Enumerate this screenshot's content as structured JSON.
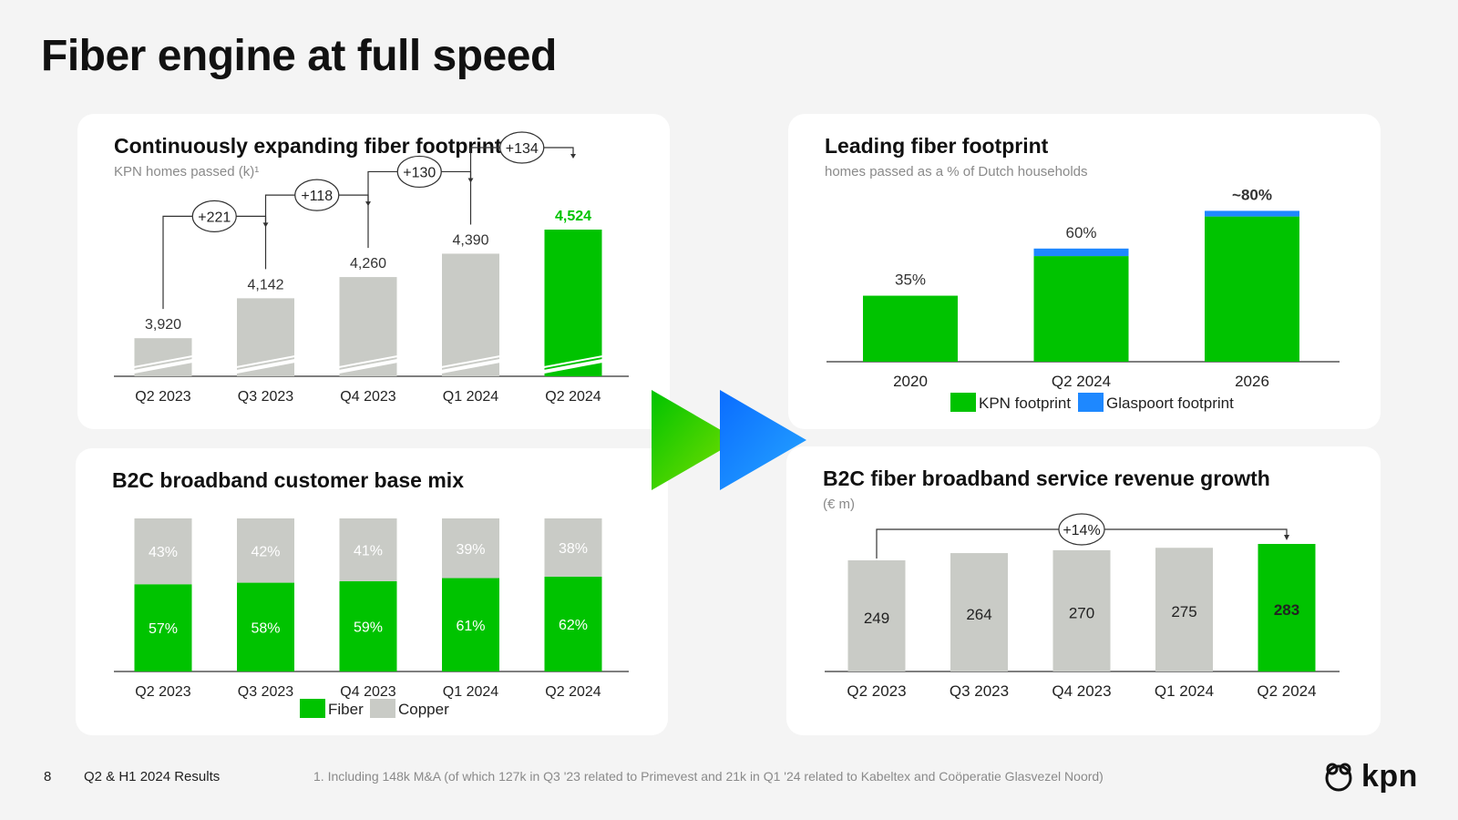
{
  "slide": {
    "title": "Fiber engine at full speed"
  },
  "footer": {
    "page_number": "8",
    "deck_title": "Q2 & H1 2024 Results",
    "footnote": "1. Including 148k M&A (of which 127k in Q3 '23 related to Primevest and 21k in Q1 '24 related to Kabeltex and Coöperatie Glasvezel Noord)",
    "logo_text": "kpn"
  },
  "colors": {
    "green": "#00c300",
    "grey": "#c9cbc6",
    "blue": "#1e88ff",
    "dark": "#222222"
  },
  "panels": {
    "homes_passed": {
      "title": "Continuously expanding fiber footprint",
      "subtitle": "KPN homes passed (k)¹"
    },
    "leading": {
      "title": "Leading fiber footprint",
      "subtitle": "homes passed as a % of Dutch households"
    },
    "mix": {
      "title": "B2C broadband customer base mix"
    },
    "revenue": {
      "title": "B2C fiber broadband service revenue growth",
      "subtitle": "(€ m)"
    }
  },
  "chart_data": [
    {
      "id": "homes_passed",
      "type": "bar",
      "title": "Continuously expanding fiber footprint",
      "subtitle": "KPN homes passed (k)¹",
      "categories": [
        "Q2 2023",
        "Q3 2023",
        "Q4 2023",
        "Q1 2024",
        "Q2 2024"
      ],
      "values": [
        3920,
        4142,
        4260,
        4390,
        4524
      ],
      "value_labels": [
        "3,920",
        "4,142",
        "4,260",
        "4,390",
        "4,524"
      ],
      "highlight_index": 4,
      "axis_break": true,
      "increments": [
        "+221",
        "+118",
        "+130",
        "+134"
      ]
    },
    {
      "id": "leading",
      "type": "bar",
      "stacked": true,
      "title": "Leading fiber footprint",
      "subtitle": "homes passed as a % of Dutch households",
      "categories": [
        "2020",
        "Q2 2024",
        "2026"
      ],
      "series": [
        {
          "name": "KPN footprint",
          "values": [
            35,
            56,
            77
          ]
        },
        {
          "name": "Glaspoort footprint",
          "values": [
            0,
            4,
            3
          ]
        }
      ],
      "total_labels": [
        "35%",
        "60%",
        "~80%"
      ],
      "legend": "bottom"
    },
    {
      "id": "mix",
      "type": "bar",
      "stacked": true,
      "title": "B2C broadband customer base mix",
      "categories": [
        "Q2 2023",
        "Q3 2023",
        "Q4 2023",
        "Q1 2024",
        "Q2 2024"
      ],
      "series": [
        {
          "name": "Fiber",
          "values": [
            57,
            58,
            59,
            61,
            62
          ]
        },
        {
          "name": "Copper",
          "values": [
            43,
            42,
            41,
            39,
            38
          ]
        }
      ],
      "ylim": [
        0,
        100
      ],
      "legend": "bottom"
    },
    {
      "id": "revenue",
      "type": "bar",
      "title": "B2C fiber broadband service revenue growth",
      "subtitle": "(€ m)",
      "categories": [
        "Q2 2023",
        "Q3 2023",
        "Q4 2023",
        "Q1 2024",
        "Q2 2024"
      ],
      "values": [
        249,
        264,
        270,
        275,
        283
      ],
      "highlight_index": 4,
      "growth_label": "+14%"
    }
  ]
}
